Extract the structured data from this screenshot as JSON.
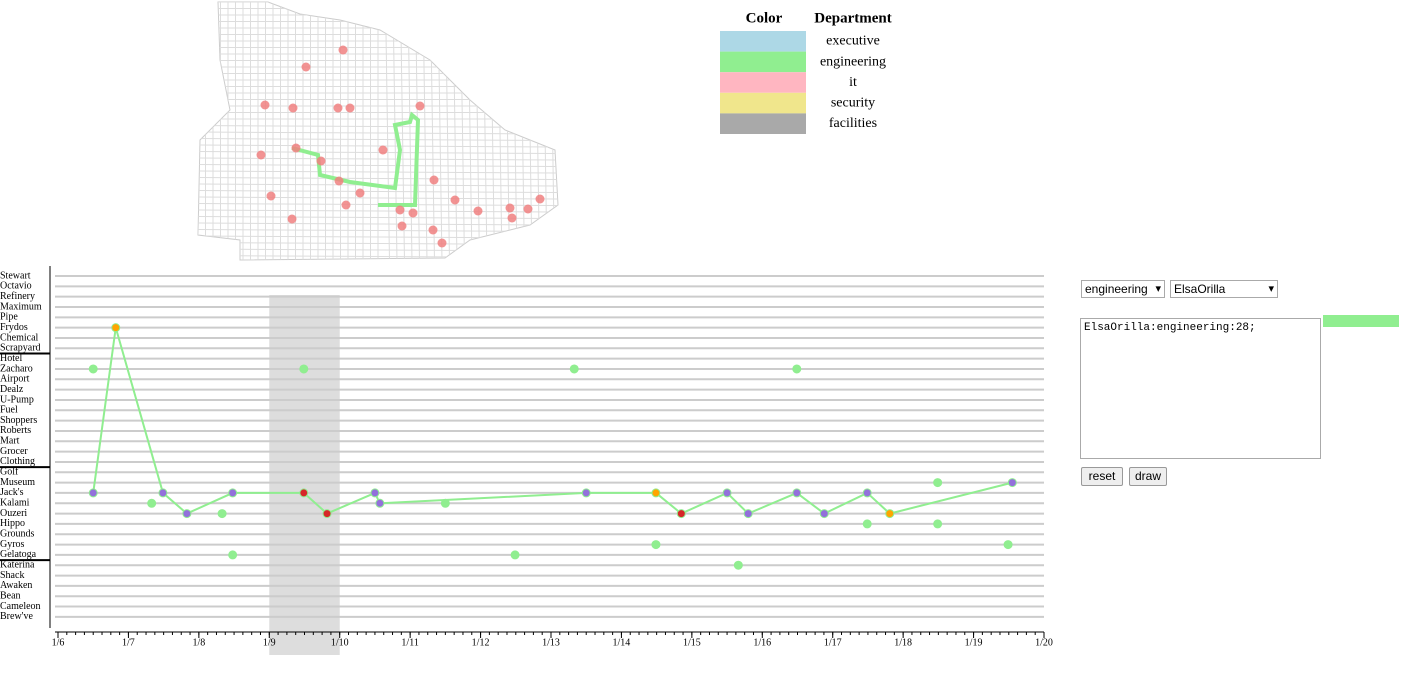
{
  "legend": {
    "headers": [
      "Color",
      "Department"
    ],
    "departments": [
      {
        "name": "executive",
        "color": "#add8e6"
      },
      {
        "name": "engineering",
        "color": "#90ee90"
      },
      {
        "name": "it",
        "color": "#ffb6c1"
      },
      {
        "name": "security",
        "color": "#f0e68c"
      },
      {
        "name": "facilities",
        "color": "#a9a9a9"
      }
    ]
  },
  "timeline": {
    "rows": [
      "Stewart",
      "Octavio",
      "Refinery",
      "Maximum",
      "Pipe",
      "Frydos",
      "Chemical",
      "Scrapyard",
      "Hotel",
      "Zacharo",
      "Airport",
      "Dealz",
      "U-Pump",
      "Fuel",
      "Shoppers",
      "Roberts",
      "Mart",
      "Grocer",
      "Clothing",
      "Golf",
      "Museum",
      "Jack's",
      "Kalami",
      "Ouzeri",
      "Hippo",
      "Grounds",
      "Gyros",
      "Gelatoga",
      "Katerina",
      "Shack",
      "Awaken",
      "Bean",
      "Cameleon",
      "Brew've"
    ],
    "xlim": [
      6,
      20
    ],
    "xticks": [
      {
        "value": 6,
        "label": "1/6"
      },
      {
        "value": 7,
        "label": "1/7"
      },
      {
        "value": 8,
        "label": "1/8"
      },
      {
        "value": 9,
        "label": "1/9"
      },
      {
        "value": 10,
        "label": "1/10"
      },
      {
        "value": 11,
        "label": "1/11"
      },
      {
        "value": 12,
        "label": "1/12"
      },
      {
        "value": 13,
        "label": "1/13"
      },
      {
        "value": 14,
        "label": "1/14"
      },
      {
        "value": 15,
        "label": "1/15"
      },
      {
        "value": 16,
        "label": "1/16"
      },
      {
        "value": 17,
        "label": "1/17"
      },
      {
        "value": 18,
        "label": "1/18"
      },
      {
        "value": 19,
        "label": "1/19"
      },
      {
        "value": 20,
        "label": "1/20"
      }
    ],
    "highlight": [
      9,
      10
    ],
    "path": {
      "color": "#90ee90",
      "days": [
        6.5,
        6.82,
        7.49,
        7.83,
        8.48,
        9.49,
        9.82,
        10.5,
        10.57,
        13.5,
        14.49,
        14.85,
        15.5,
        15.8,
        16.49,
        16.88,
        17.49,
        17.81,
        19.55
      ],
      "rows": [
        21,
        5,
        21,
        23,
        21,
        21,
        23,
        21,
        22,
        21,
        21,
        23,
        21,
        23,
        21,
        23,
        21,
        23,
        20
      ]
    },
    "markers": [
      {
        "day": 6.5,
        "row": 21,
        "color": "#9370db"
      },
      {
        "day": 6.82,
        "row": 5,
        "color": "#ffa500"
      },
      {
        "day": 7.49,
        "row": 21,
        "color": "#9370db"
      },
      {
        "day": 7.83,
        "row": 23,
        "color": "#9370db"
      },
      {
        "day": 8.48,
        "row": 21,
        "color": "#9370db"
      },
      {
        "day": 9.49,
        "row": 21,
        "color": "#d62728"
      },
      {
        "day": 9.82,
        "row": 23,
        "color": "#d62728"
      },
      {
        "day": 10.5,
        "row": 21,
        "color": "#9370db"
      },
      {
        "day": 10.57,
        "row": 22,
        "color": "#9370db"
      },
      {
        "day": 13.5,
        "row": 21,
        "color": "#9370db"
      },
      {
        "day": 14.49,
        "row": 21,
        "color": "#ffa500"
      },
      {
        "day": 14.85,
        "row": 23,
        "color": "#d62728"
      },
      {
        "day": 15.5,
        "row": 21,
        "color": "#9370db"
      },
      {
        "day": 15.8,
        "row": 23,
        "color": "#9370db"
      },
      {
        "day": 16.49,
        "row": 21,
        "color": "#9370db"
      },
      {
        "day": 16.88,
        "row": 23,
        "color": "#9370db"
      },
      {
        "day": 17.49,
        "row": 21,
        "color": "#9370db"
      },
      {
        "day": 17.81,
        "row": 23,
        "color": "#ffa500"
      },
      {
        "day": 19.55,
        "row": 20,
        "color": "#9370db"
      },
      {
        "day": 6.5,
        "row": 9,
        "color": "#90ee90"
      },
      {
        "day": 9.49,
        "row": 9,
        "color": "#90ee90"
      },
      {
        "day": 13.33,
        "row": 9,
        "color": "#90ee90"
      },
      {
        "day": 16.49,
        "row": 9,
        "color": "#90ee90"
      },
      {
        "day": 7.33,
        "row": 22,
        "color": "#90ee90"
      },
      {
        "day": 8.33,
        "row": 23,
        "color": "#90ee90"
      },
      {
        "day": 11.5,
        "row": 22,
        "color": "#90ee90"
      },
      {
        "day": 18.49,
        "row": 20,
        "color": "#90ee90"
      },
      {
        "day": 8.48,
        "row": 27,
        "color": "#90ee90"
      },
      {
        "day": 12.49,
        "row": 27,
        "color": "#90ee90"
      },
      {
        "day": 14.49,
        "row": 26,
        "color": "#90ee90"
      },
      {
        "day": 15.66,
        "row": 28,
        "color": "#90ee90"
      },
      {
        "day": 17.49,
        "row": 24,
        "color": "#90ee90"
      },
      {
        "day": 18.49,
        "row": 24,
        "color": "#90ee90"
      },
      {
        "day": 19.49,
        "row": 26,
        "color": "#90ee90"
      }
    ]
  },
  "controls": {
    "department": "engineering",
    "employee": "ElsaOrilla",
    "output": "ElsaOrilla:engineering:28;",
    "swatch_color": "#90ee90",
    "buttons": [
      "reset",
      "draw"
    ]
  }
}
